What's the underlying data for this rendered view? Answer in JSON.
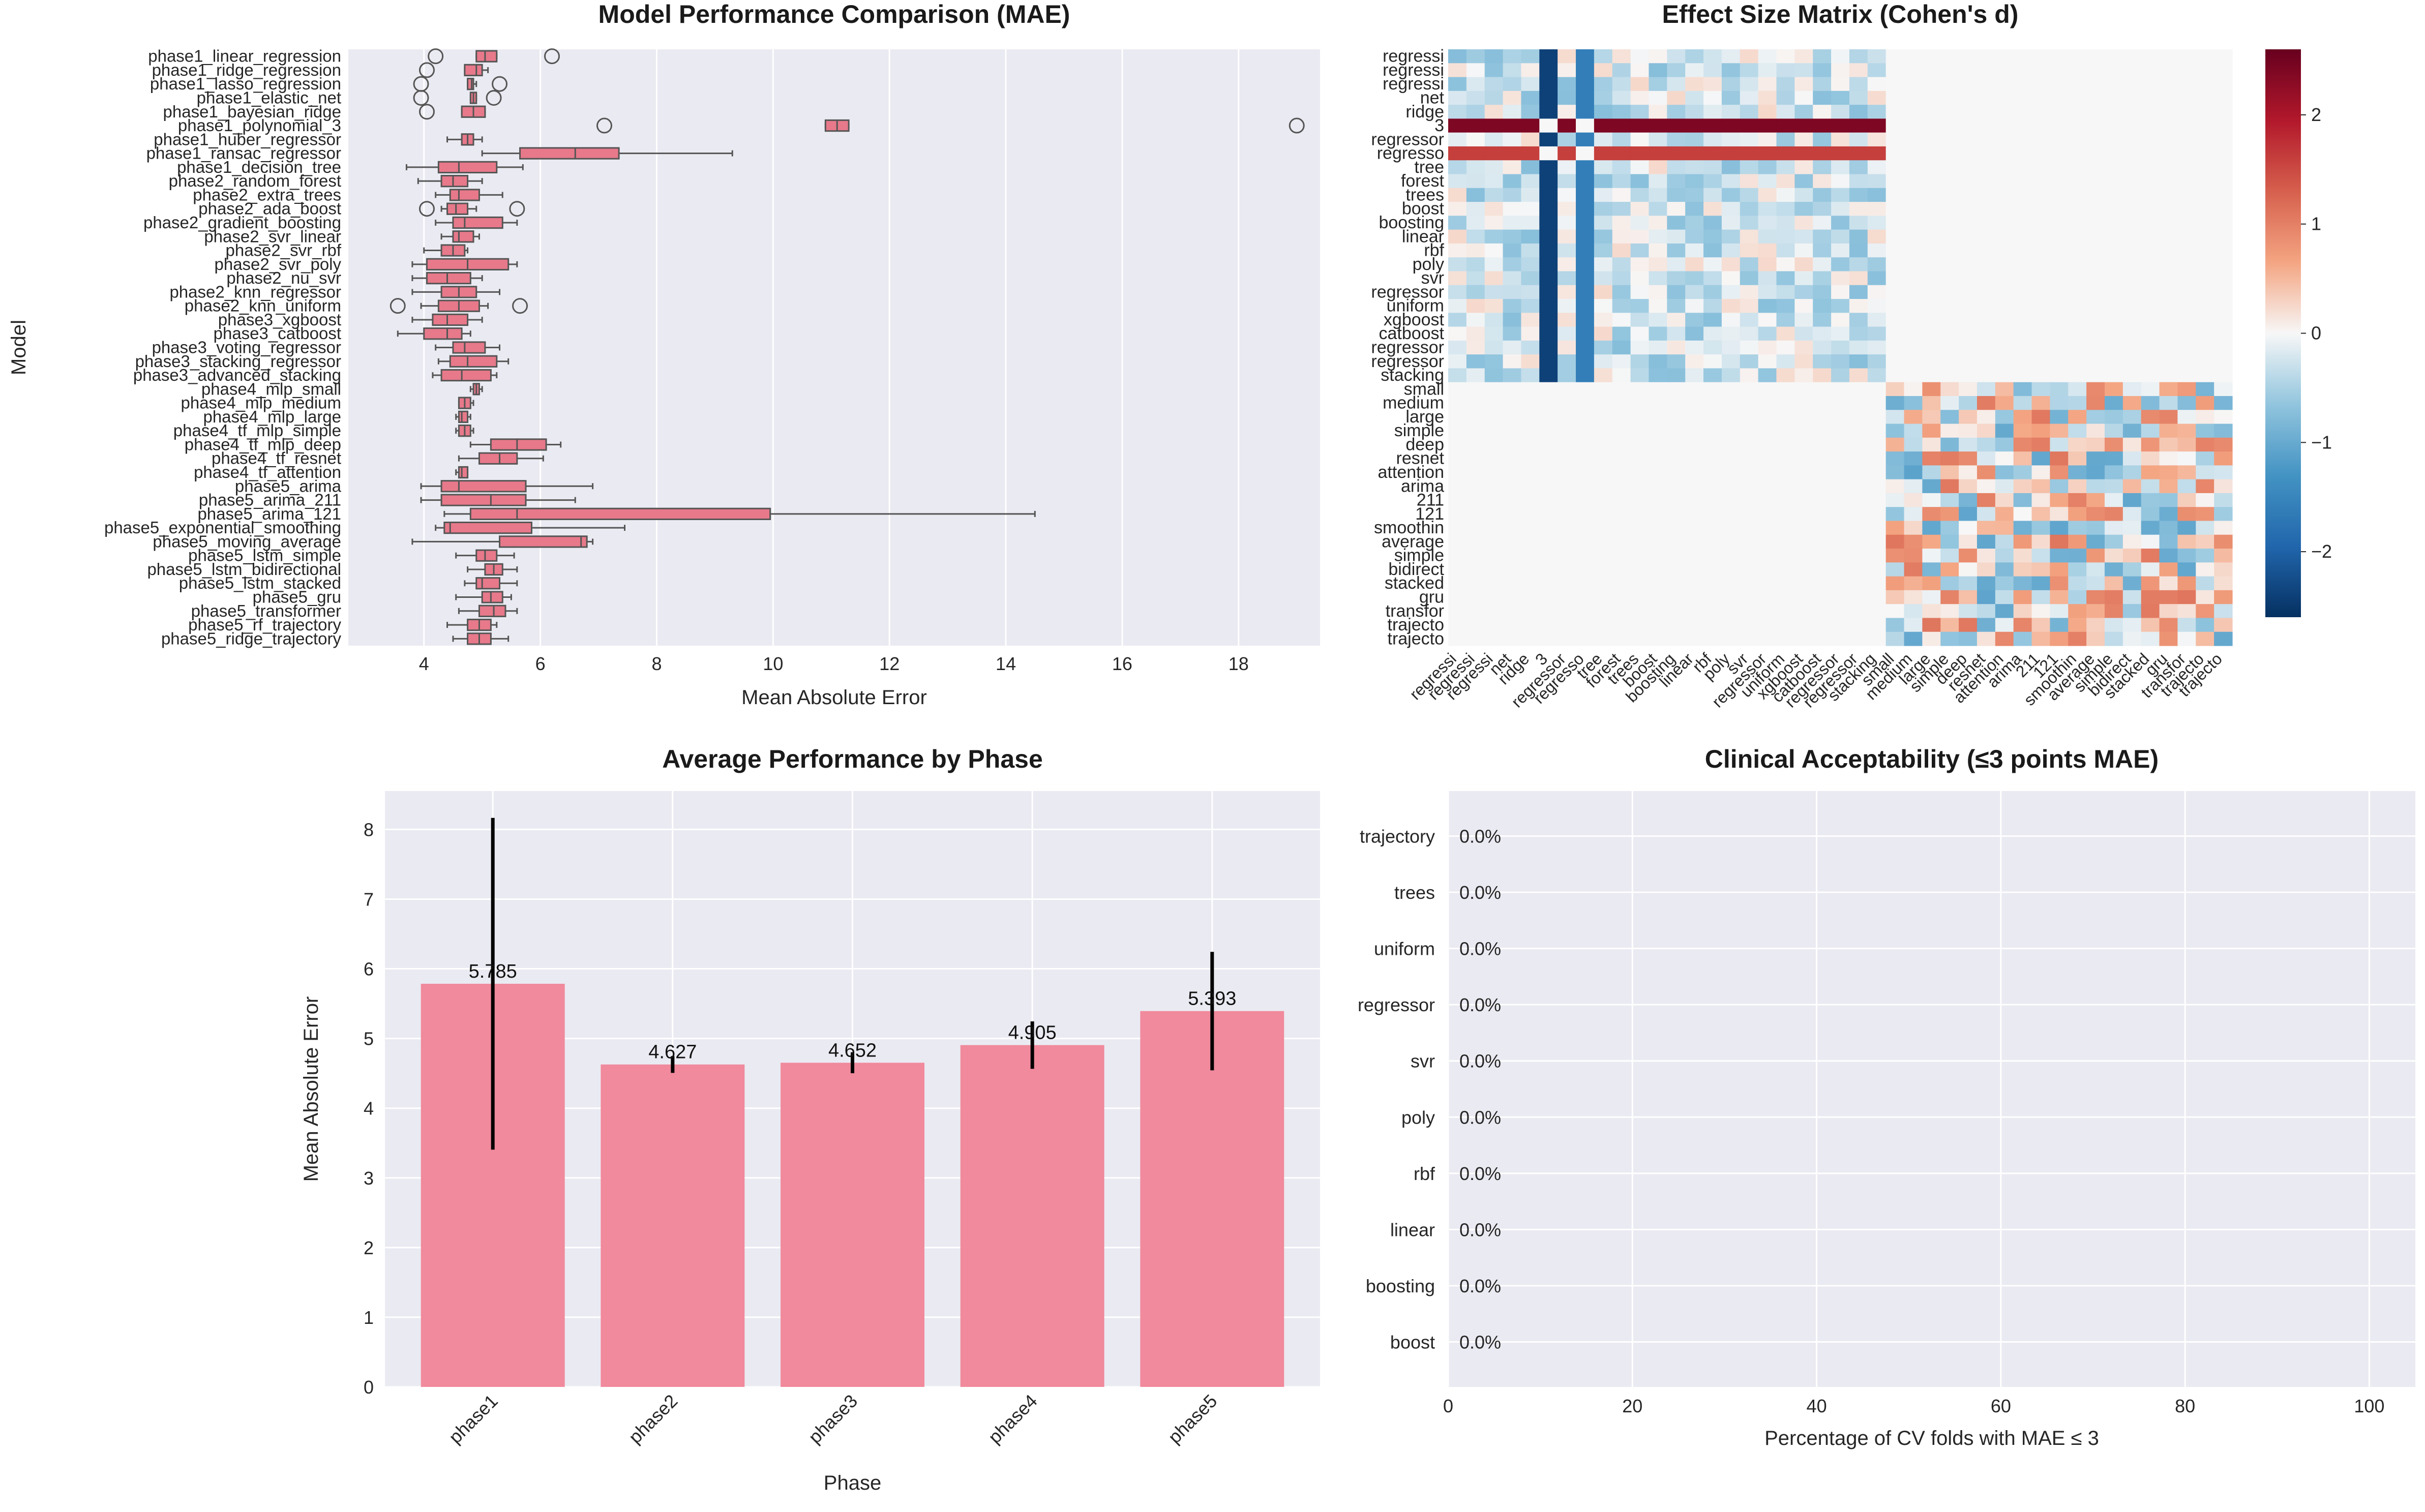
{
  "chart_data": [
    {
      "type": "box",
      "title": "Model Performance Comparison (MAE)",
      "xlabel": "Mean Absolute Error",
      "ylabel": "Model",
      "xlim": [
        2.7,
        19.4
      ],
      "xticks": [
        4,
        6,
        8,
        10,
        12,
        14,
        16,
        18
      ],
      "color": "#e7798a",
      "models": [
        {
          "name": "phase1_linear_regression",
          "q1": 4.9,
          "median": 5.05,
          "q3": 5.25,
          "wlo": 4.9,
          "whi": 5.25,
          "fliers": [
            4.2,
            6.2
          ]
        },
        {
          "name": "phase1_ridge_regression",
          "q1": 4.7,
          "median": 4.9,
          "q3": 5.0,
          "wlo": 4.7,
          "whi": 5.1,
          "fliers": [
            4.05
          ]
        },
        {
          "name": "phase1_lasso_regression",
          "q1": 4.75,
          "median": 4.82,
          "q3": 4.85,
          "wlo": 4.75,
          "whi": 4.9,
          "fliers": [
            3.95,
            5.3
          ]
        },
        {
          "name": "phase1_elastic_net",
          "q1": 4.8,
          "median": 4.85,
          "q3": 4.9,
          "wlo": 4.8,
          "whi": 4.9,
          "fliers": [
            3.95,
            5.2
          ]
        },
        {
          "name": "phase1_bayesian_ridge",
          "q1": 4.65,
          "median": 4.85,
          "q3": 5.05,
          "wlo": 4.65,
          "whi": 5.05,
          "fliers": [
            4.05
          ]
        },
        {
          "name": "phase1_polynomial_3",
          "q1": 10.9,
          "median": 11.1,
          "q3": 11.3,
          "wlo": 10.9,
          "whi": 11.3,
          "fliers": [
            7.1,
            19.0
          ]
        },
        {
          "name": "phase1_huber_regressor",
          "q1": 4.65,
          "median": 4.75,
          "q3": 4.85,
          "wlo": 4.4,
          "whi": 5.0,
          "fliers": []
        },
        {
          "name": "phase1_ransac_regressor",
          "q1": 5.65,
          "median": 6.6,
          "q3": 7.35,
          "wlo": 5.0,
          "whi": 9.3,
          "fliers": []
        },
        {
          "name": "phase1_decision_tree",
          "q1": 4.25,
          "median": 4.6,
          "q3": 5.25,
          "wlo": 3.7,
          "whi": 5.7,
          "fliers": []
        },
        {
          "name": "phase2_random_forest",
          "q1": 4.3,
          "median": 4.5,
          "q3": 4.75,
          "wlo": 3.9,
          "whi": 5.0,
          "fliers": []
        },
        {
          "name": "phase2_extra_trees",
          "q1": 4.45,
          "median": 4.6,
          "q3": 4.95,
          "wlo": 4.2,
          "whi": 5.35,
          "fliers": []
        },
        {
          "name": "phase2_ada_boost",
          "q1": 4.4,
          "median": 4.55,
          "q3": 4.75,
          "wlo": 4.3,
          "whi": 4.9,
          "fliers": [
            4.05,
            5.6
          ]
        },
        {
          "name": "phase2_gradient_boosting",
          "q1": 4.5,
          "median": 4.7,
          "q3": 5.35,
          "wlo": 4.2,
          "whi": 5.6,
          "fliers": []
        },
        {
          "name": "phase2_svr_linear",
          "q1": 4.5,
          "median": 4.6,
          "q3": 4.85,
          "wlo": 4.3,
          "whi": 4.95,
          "fliers": []
        },
        {
          "name": "phase2_svr_rbf",
          "q1": 4.3,
          "median": 4.5,
          "q3": 4.7,
          "wlo": 4.0,
          "whi": 4.75,
          "fliers": []
        },
        {
          "name": "phase2_svr_poly",
          "q1": 4.05,
          "median": 4.75,
          "q3": 5.45,
          "wlo": 3.8,
          "whi": 5.6,
          "fliers": []
        },
        {
          "name": "phase2_nu_svr",
          "q1": 4.05,
          "median": 4.4,
          "q3": 4.8,
          "wlo": 3.8,
          "whi": 5.0,
          "fliers": []
        },
        {
          "name": "phase2_knn_regressor",
          "q1": 4.3,
          "median": 4.6,
          "q3": 4.9,
          "wlo": 3.8,
          "whi": 5.3,
          "fliers": []
        },
        {
          "name": "phase2_knn_uniform",
          "q1": 4.25,
          "median": 4.6,
          "q3": 4.95,
          "wlo": 3.95,
          "whi": 5.1,
          "fliers": [
            3.55,
            5.65
          ]
        },
        {
          "name": "phase3_xgboost",
          "q1": 4.15,
          "median": 4.4,
          "q3": 4.75,
          "wlo": 3.8,
          "whi": 5.0,
          "fliers": []
        },
        {
          "name": "phase3_catboost",
          "q1": 4.0,
          "median": 4.4,
          "q3": 4.65,
          "wlo": 3.55,
          "whi": 4.8,
          "fliers": []
        },
        {
          "name": "phase3_voting_regressor",
          "q1": 4.5,
          "median": 4.7,
          "q3": 5.05,
          "wlo": 4.2,
          "whi": 5.3,
          "fliers": []
        },
        {
          "name": "phase3_stacking_regressor",
          "q1": 4.45,
          "median": 4.75,
          "q3": 5.25,
          "wlo": 4.25,
          "whi": 5.45,
          "fliers": []
        },
        {
          "name": "phase3_advanced_stacking",
          "q1": 4.3,
          "median": 4.65,
          "q3": 5.15,
          "wlo": 4.15,
          "whi": 5.25,
          "fliers": []
        },
        {
          "name": "phase4_mlp_small",
          "q1": 4.85,
          "median": 4.9,
          "q3": 4.95,
          "wlo": 4.8,
          "whi": 5.0,
          "fliers": []
        },
        {
          "name": "phase4_mlp_medium",
          "q1": 4.6,
          "median": 4.7,
          "q3": 4.8,
          "wlo": 4.6,
          "whi": 4.85,
          "fliers": []
        },
        {
          "name": "phase4_mlp_large",
          "q1": 4.6,
          "median": 4.65,
          "q3": 4.75,
          "wlo": 4.55,
          "whi": 4.8,
          "fliers": []
        },
        {
          "name": "phase4_tf_mlp_simple",
          "q1": 4.6,
          "median": 4.7,
          "q3": 4.8,
          "wlo": 4.55,
          "whi": 4.85,
          "fliers": []
        },
        {
          "name": "phase4_tf_mlp_deep",
          "q1": 5.15,
          "median": 5.6,
          "q3": 6.1,
          "wlo": 4.8,
          "whi": 6.35,
          "fliers": []
        },
        {
          "name": "phase4_tf_resnet",
          "q1": 4.95,
          "median": 5.3,
          "q3": 5.6,
          "wlo": 4.6,
          "whi": 6.05,
          "fliers": []
        },
        {
          "name": "phase4_tf_attention",
          "q1": 4.6,
          "median": 4.65,
          "q3": 4.75,
          "wlo": 4.55,
          "whi": 4.75,
          "fliers": []
        },
        {
          "name": "phase5_arima",
          "q1": 4.3,
          "median": 4.6,
          "q3": 5.75,
          "wlo": 3.95,
          "whi": 6.9,
          "fliers": []
        },
        {
          "name": "phase5_arima_211",
          "q1": 4.3,
          "median": 5.15,
          "q3": 5.75,
          "wlo": 3.95,
          "whi": 6.6,
          "fliers": []
        },
        {
          "name": "phase5_arima_121",
          "q1": 4.8,
          "median": 5.6,
          "q3": 9.95,
          "wlo": 4.35,
          "whi": 14.5,
          "fliers": []
        },
        {
          "name": "phase5_exponential_smoothing",
          "q1": 4.35,
          "median": 4.45,
          "q3": 5.85,
          "wlo": 4.2,
          "whi": 7.45,
          "fliers": []
        },
        {
          "name": "phase5_moving_average",
          "q1": 5.3,
          "median": 6.7,
          "q3": 6.8,
          "wlo": 3.8,
          "whi": 6.9,
          "fliers": []
        },
        {
          "name": "phase5_lstm_simple",
          "q1": 4.9,
          "median": 5.05,
          "q3": 5.25,
          "wlo": 4.55,
          "whi": 5.55,
          "fliers": []
        },
        {
          "name": "phase5_lstm_bidirectional",
          "q1": 5.05,
          "median": 5.2,
          "q3": 5.35,
          "wlo": 4.75,
          "whi": 5.6,
          "fliers": []
        },
        {
          "name": "phase5_lstm_stacked",
          "q1": 4.9,
          "median": 5.0,
          "q3": 5.3,
          "wlo": 4.7,
          "whi": 5.6,
          "fliers": []
        },
        {
          "name": "phase5_gru",
          "q1": 5.0,
          "median": 5.15,
          "q3": 5.35,
          "wlo": 4.55,
          "whi": 5.5,
          "fliers": []
        },
        {
          "name": "phase5_transformer",
          "q1": 4.95,
          "median": 5.2,
          "q3": 5.4,
          "wlo": 4.6,
          "whi": 5.6,
          "fliers": []
        },
        {
          "name": "phase5_rf_trajectory",
          "q1": 4.75,
          "median": 4.95,
          "q3": 5.15,
          "wlo": 4.4,
          "whi": 5.25,
          "fliers": []
        },
        {
          "name": "phase5_ridge_trajectory",
          "q1": 4.75,
          "median": 4.95,
          "q3": 5.15,
          "wlo": 4.5,
          "whi": 5.45,
          "fliers": []
        }
      ]
    },
    {
      "type": "heatmap",
      "title": "Effect Size Matrix (Cohen's d)",
      "labels": [
        "regressi",
        "regressi",
        "regressi",
        "net",
        "ridge",
        "3",
        "regressor",
        "regresso",
        "tree",
        "forest",
        "trees",
        "boost",
        "boosting",
        "linear",
        "rbf",
        "poly",
        "svr",
        "regressor",
        "uniform",
        "xgboost",
        "catboost",
        "regressor",
        "regressor",
        "stacking",
        "small",
        "medium",
        "large",
        "simple",
        "deep",
        "resnet",
        "attention",
        "arima",
        "211",
        "121",
        "smoothin",
        "average",
        "simple",
        "bidirect",
        "stacked",
        "gru",
        "transfor",
        "trajecto",
        "trajecto"
      ],
      "colorbar_ticks": [
        -2,
        -1,
        0,
        1,
        2
      ],
      "vmin": -2.6,
      "vmax": 2.6,
      "colormap": "RdBu_r"
    },
    {
      "type": "bar",
      "title": "Average Performance by Phase",
      "xlabel": "Phase",
      "ylabel": "Mean Absolute Error",
      "categories": [
        "phase1",
        "phase2",
        "phase3",
        "phase4",
        "phase5"
      ],
      "values": [
        5.785,
        4.627,
        4.652,
        4.905,
        5.393
      ],
      "value_labels": [
        "5.785",
        "4.627",
        "4.652",
        "4.905",
        "5.393"
      ],
      "errors": [
        2.38,
        0.12,
        0.15,
        0.34,
        0.85
      ],
      "ylim": [
        0,
        8.55
      ],
      "yticks": [
        0,
        1,
        2,
        3,
        4,
        5,
        6,
        7,
        8
      ],
      "color": "#f08a9c"
    },
    {
      "type": "bar",
      "orientation": "horizontal",
      "title": "Clinical Acceptability (≤3 points MAE)",
      "xlabel": "Percentage of CV folds with MAE ≤ 3",
      "categories": [
        "trajectory",
        "trees",
        "uniform",
        "regressor",
        "svr",
        "poly",
        "rbf",
        "linear",
        "boosting",
        "boost"
      ],
      "values": [
        0.0,
        0.0,
        0.0,
        0.0,
        0.0,
        0.0,
        0.0,
        0.0,
        0.0,
        0.0
      ],
      "value_labels": [
        "0.0%",
        "0.0%",
        "0.0%",
        "0.0%",
        "0.0%",
        "0.0%",
        "0.0%",
        "0.0%",
        "0.0%",
        "0.0%"
      ],
      "xlim": [
        0,
        105
      ],
      "xticks": [
        0,
        20,
        40,
        60,
        80,
        100
      ]
    }
  ]
}
